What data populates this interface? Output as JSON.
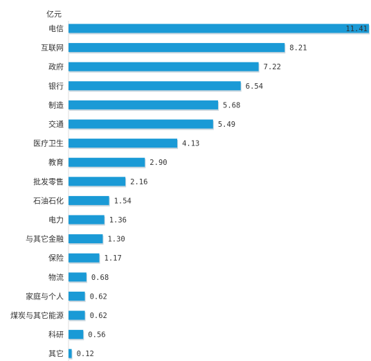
{
  "chart_data": {
    "type": "bar",
    "orientation": "horizontal",
    "unit_label": "亿元",
    "categories": [
      "电信",
      "互联网",
      "政府",
      "银行",
      "制造",
      "交通",
      "医疗卫生",
      "教育",
      "批发零售",
      "石油石化",
      "电力",
      "与其它金融",
      "保险",
      "物流",
      "家庭与个人",
      "煤炭与其它能源",
      "科研",
      "其它"
    ],
    "values": [
      11.41,
      8.21,
      7.22,
      6.54,
      5.68,
      5.49,
      4.13,
      2.9,
      2.16,
      1.54,
      1.36,
      1.3,
      1.17,
      0.68,
      0.62,
      0.62,
      0.56,
      0.12
    ],
    "value_labels": [
      "11.41",
      "8.21",
      "7.22",
      "6.54",
      "5.68",
      "5.49",
      "4.13",
      "2.90",
      "2.16",
      "1.54",
      "1.36",
      "1.30",
      "1.17",
      "0.68",
      "0.62",
      "0.62",
      "0.56",
      "0.12"
    ],
    "xlim": [
      0,
      11.41
    ],
    "grid": false,
    "legend": "none",
    "bar_color": "#1a9ad6",
    "bar_shadow_color": "#0e6f9e",
    "text_color": "#333333"
  }
}
